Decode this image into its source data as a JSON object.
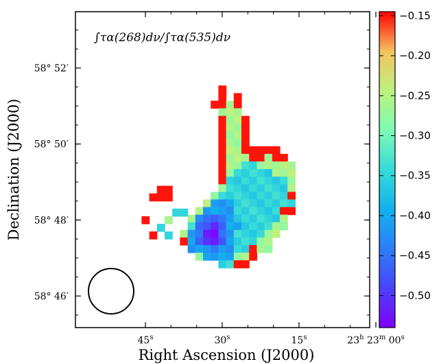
{
  "chart_data": {
    "type": "heatmap",
    "title": "",
    "annotation": "∫τα(268)dν/∫τα(535)dν",
    "xlabel": "Right Ascension (J2000)",
    "ylabel": "Declination (J2000)",
    "x_ticks": [
      {
        "ra_s": 45,
        "base": "45",
        "sup": "s"
      },
      {
        "ra_s": 30,
        "base": "30",
        "sup": "s"
      },
      {
        "ra_s": 15,
        "base": "15",
        "sup": "s"
      },
      {
        "ra_s": 0,
        "base": "23",
        "sup": "h",
        "base2": "23",
        "sup2": "m",
        "base3": "00",
        "sup3": "s"
      }
    ],
    "y_ticks": [
      {
        "dec_min": 52,
        "label": "58° 52′"
      },
      {
        "dec_min": 50,
        "label": "58° 50′"
      },
      {
        "dec_min": 48,
        "label": "58° 48′"
      },
      {
        "dec_min": 46,
        "label": "58° 46′"
      }
    ],
    "colorbar": {
      "vmin": -0.54,
      "vmax": -0.145,
      "ticks": [
        -0.15,
        -0.2,
        -0.25,
        -0.3,
        -0.35,
        -0.4,
        -0.45,
        -0.5
      ],
      "tick_labels": [
        "−0.15",
        "−0.20",
        "−0.25",
        "−0.30",
        "−0.35",
        "−0.40",
        "−0.45",
        "−0.50"
      ],
      "colormap": "rainbow"
    },
    "beam": {
      "shape": "circle"
    },
    "pixels": {
      "ra_start_s": 45,
      "ra_step_s": -1.5,
      "dec_start_min": 51.44,
      "dec_step_min": -0.2,
      "rows": [
        "..........X.........",
        "..........X.X.......",
        ".........XXOX.......",
        "..........OOO.......",
        "..........XOOX......",
        "..........XOOX......",
        "..........XOOX......",
        "..........XOOX......",
        "..........XOOXXXXX..",
        "..........XOOOXXOXX.",
        "..........XOOGGOOOOO",
        "..........XOGGGGGOOO",
        "..........XGGGGGGGGO",
        "..........OGGGGGGGGO",
        ".........OGGGGGGGGGX",
        "........OCCCGGGGGGGG",
        ".......OCCCCGGGGGGXX",
        "......OCBBBCGGGGGGO.",
        "......GBBVBCCGGGGOO.",
        ".....OCBVVBCGGGGOO..",
        ".....XCBVVBCGGGOO...",
        "......CCCBCCGGXOO...",
        ".......OCCCCOOX.....",
        "..........GGXX......"
      ]
    },
    "isolated_pixels": [
      {
        "ra_s": 43.5,
        "dec_min": 48.6,
        "class": "X"
      },
      {
        "ra_s": 42.0,
        "dec_min": 48.6,
        "class": "X"
      },
      {
        "ra_s": 40.5,
        "dec_min": 48.6,
        "class": "X"
      },
      {
        "ra_s": 42.0,
        "dec_min": 48.8,
        "class": "X"
      },
      {
        "ra_s": 40.5,
        "dec_min": 48.8,
        "class": "X"
      },
      {
        "ra_s": 45.0,
        "dec_min": 48.0,
        "class": "X"
      },
      {
        "ra_s": 43.5,
        "dec_min": 47.6,
        "class": "X"
      },
      {
        "ra_s": 42.0,
        "dec_min": 47.8,
        "class": "G"
      },
      {
        "ra_s": 40.5,
        "dec_min": 47.6,
        "class": "G"
      },
      {
        "ra_s": 40.5,
        "dec_min": 48.0,
        "class": "O"
      },
      {
        "ra_s": 39.0,
        "dec_min": 48.2,
        "class": "G"
      },
      {
        "ra_s": 37.5,
        "dec_min": 48.2,
        "class": "G"
      }
    ],
    "class_values": {
      "X": -0.15,
      "O": -0.26,
      "G": -0.35,
      "C": -0.41,
      "B": -0.46,
      "V": -0.52
    }
  }
}
